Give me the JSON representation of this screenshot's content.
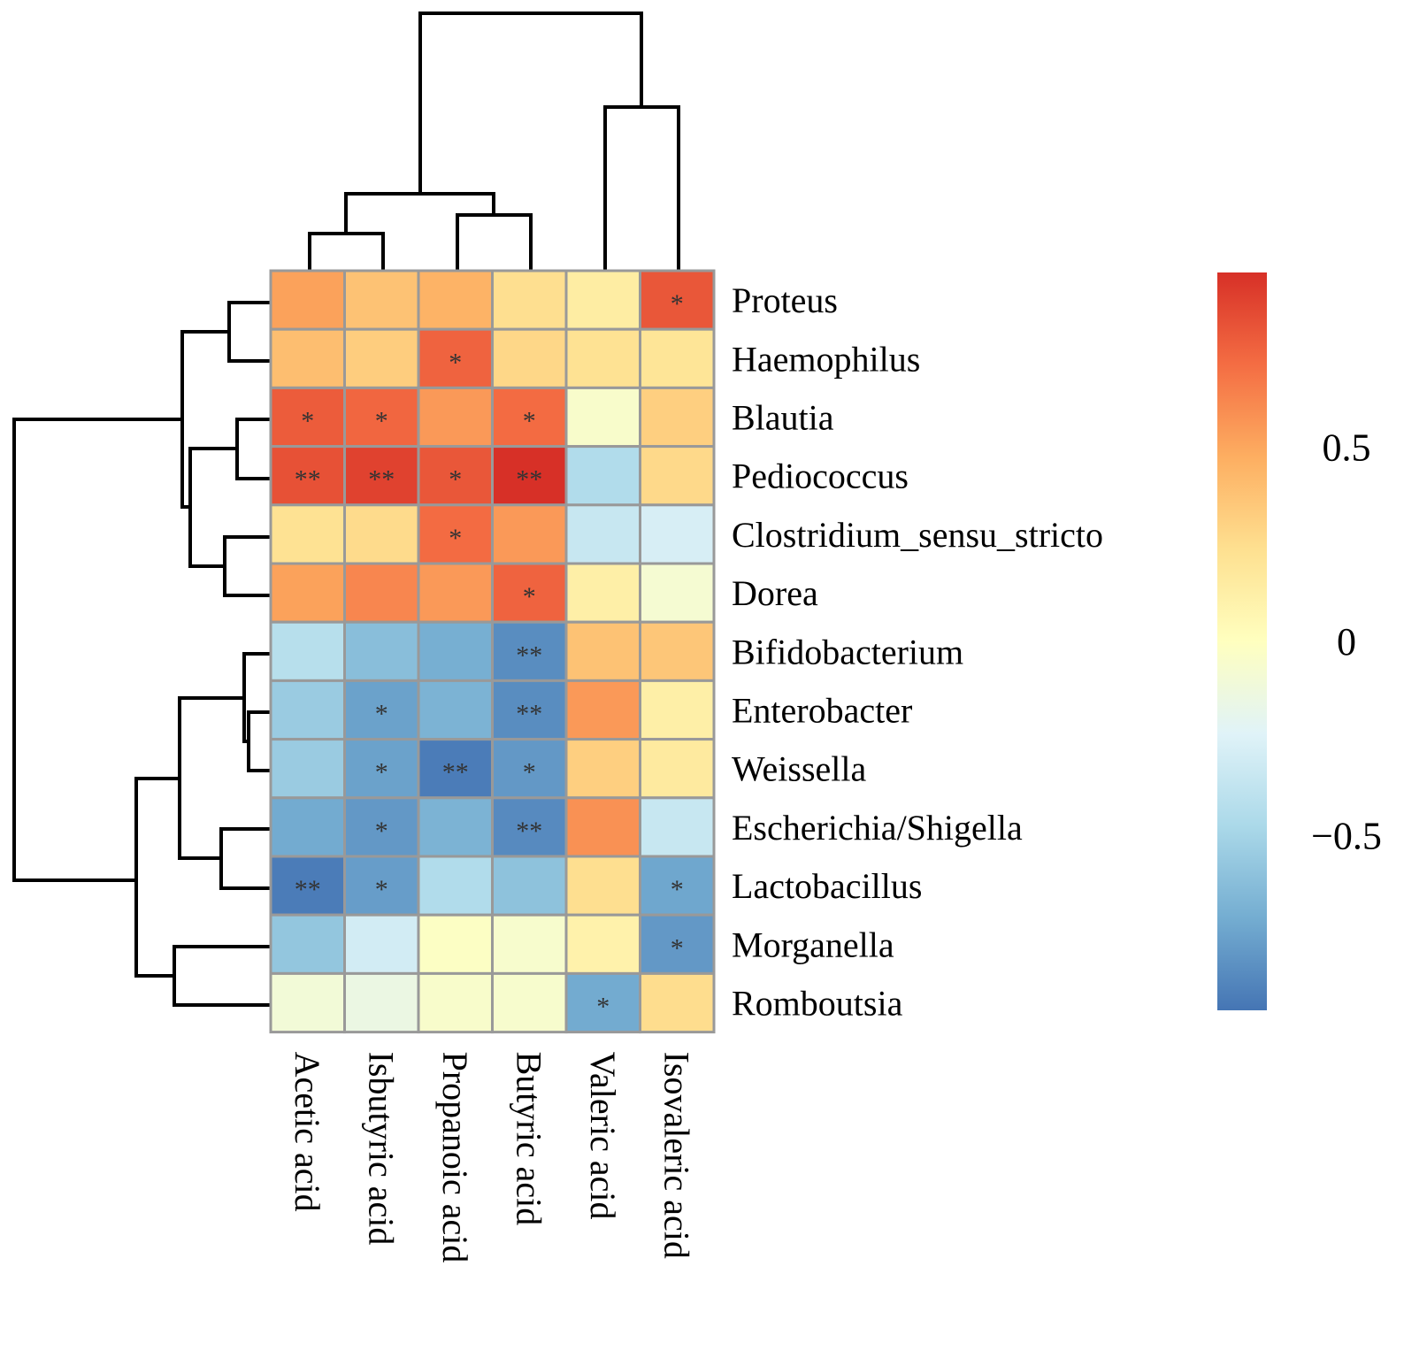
{
  "chart_data": {
    "type": "heatmap",
    "title": "",
    "rows": [
      "Proteus",
      "Haemophilus",
      "Blautia",
      "Pediococcus",
      "Clostridium_sensu_stricto",
      "Dorea",
      "Bifidobacterium",
      "Enterobacter",
      "Weissella",
      "Escherichia/Shigella",
      "Lactobacillus",
      "Morganella",
      "Romboutsia"
    ],
    "columns": [
      "Acetic acid",
      "Isbutyric acid",
      "Propanoic acid",
      "Butyric acid",
      "Valeric acid",
      "Isovaleric acid"
    ],
    "values": [
      [
        0.52,
        0.38,
        0.45,
        0.24,
        0.14,
        0.8
      ],
      [
        0.4,
        0.33,
        0.75,
        0.28,
        0.22,
        0.2
      ],
      [
        0.78,
        0.74,
        0.55,
        0.72,
        -0.05,
        0.32
      ],
      [
        0.82,
        0.88,
        0.8,
        0.95,
        -0.45,
        0.27
      ],
      [
        0.22,
        0.26,
        0.72,
        0.55,
        -0.35,
        -0.28
      ],
      [
        0.52,
        0.62,
        0.55,
        0.75,
        0.12,
        -0.08
      ],
      [
        -0.42,
        -0.62,
        -0.7,
        -0.85,
        0.38,
        0.36
      ],
      [
        -0.55,
        -0.76,
        -0.68,
        -0.85,
        0.55,
        0.12
      ],
      [
        -0.55,
        -0.76,
        -0.92,
        -0.8,
        0.32,
        0.16
      ],
      [
        -0.72,
        -0.8,
        -0.68,
        -0.86,
        0.58,
        -0.35
      ],
      [
        -0.92,
        -0.78,
        -0.45,
        -0.6,
        0.24,
        -0.74
      ],
      [
        -0.58,
        -0.3,
        -0.02,
        -0.06,
        0.1,
        -0.8
      ],
      [
        -0.1,
        -0.15,
        -0.05,
        -0.06,
        -0.72,
        0.25
      ]
    ],
    "significance": [
      [
        "",
        "",
        "",
        "",
        "",
        "*"
      ],
      [
        "",
        "",
        "*",
        "",
        "",
        ""
      ],
      [
        "*",
        "*",
        "",
        "*",
        "",
        ""
      ],
      [
        "**",
        "**",
        "*",
        "**",
        "",
        ""
      ],
      [
        "",
        "",
        "*",
        "",
        "",
        ""
      ],
      [
        "",
        "",
        "",
        "*",
        "",
        ""
      ],
      [
        "",
        "",
        "",
        "**",
        "",
        ""
      ],
      [
        "",
        "*",
        "",
        "**",
        "",
        ""
      ],
      [
        "",
        "*",
        "**",
        "*",
        "",
        ""
      ],
      [
        "",
        "*",
        "",
        "**",
        "",
        ""
      ],
      [
        "**",
        "*",
        "",
        "",
        "",
        "*"
      ],
      [
        "",
        "",
        "",
        "",
        "",
        "*"
      ],
      [
        "",
        "",
        "",
        "",
        "*",
        ""
      ]
    ],
    "colorbar": {
      "range": [
        -0.95,
        0.95
      ],
      "ticks": [
        0.5,
        0,
        -0.5
      ],
      "tick_labels": [
        "0.5",
        "0",
        "−0.5"
      ],
      "colors": [
        "#4575b4",
        "#74add1",
        "#abd9e9",
        "#e0f3f8",
        "#ffffbf",
        "#fee090",
        "#fdae61",
        "#f46d43",
        "#d73027"
      ]
    },
    "cell_border_color": "#999999",
    "row_dendrogram_order": "left",
    "column_dendrogram_order": "top"
  }
}
